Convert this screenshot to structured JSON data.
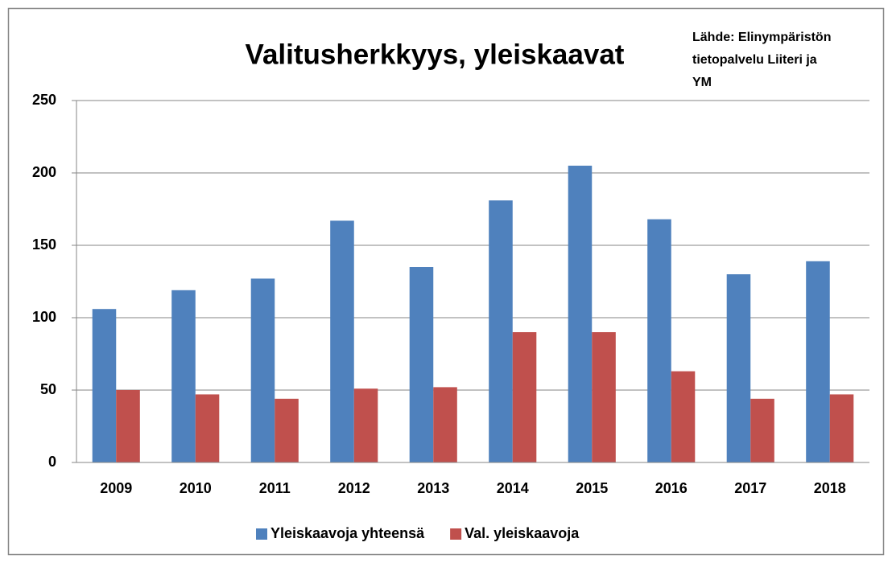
{
  "chart_data": {
    "type": "bar",
    "title": "Valitusherkkyys, yleiskaavat",
    "annotation": [
      "Lähde: Elinympäristön",
      "tietopalvelu Liiteri ja",
      "YM"
    ],
    "categories": [
      "2009",
      "2010",
      "2011",
      "2012",
      "2013",
      "2014",
      "2015",
      "2016",
      "2017",
      "2018"
    ],
    "series": [
      {
        "name": "Yleiskaavoja yhteensä",
        "color": "#4f81bd",
        "values": [
          106,
          119,
          127,
          167,
          135,
          181,
          205,
          168,
          130,
          139
        ]
      },
      {
        "name": "Val. yleiskaavoja",
        "color": "#c0504d",
        "values": [
          50,
          47,
          44,
          51,
          52,
          90,
          90,
          63,
          44,
          47
        ]
      }
    ],
    "ylim": [
      0,
      250
    ],
    "yticks": [
      0,
      50,
      100,
      150,
      200,
      250
    ],
    "grid": true,
    "legend": "bottom"
  }
}
